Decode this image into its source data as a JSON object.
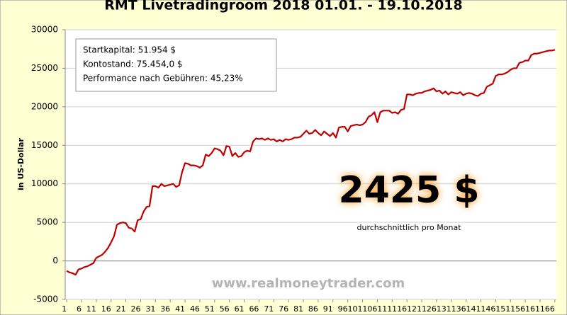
{
  "chart_data": {
    "type": "line",
    "title": "RMT Livetradingroom 2018  01.01. - 19.10.2018",
    "y_label": "in US-Dollar",
    "x": [
      1,
      2,
      3,
      4,
      5,
      6,
      7,
      8,
      9,
      10,
      11,
      12,
      13,
      14,
      15,
      16,
      17,
      18,
      19,
      20,
      21,
      22,
      23,
      24,
      25,
      26,
      27,
      28,
      29,
      30,
      31,
      32,
      33,
      34,
      35,
      36,
      37,
      38,
      39,
      40,
      41,
      42,
      43,
      44,
      45,
      46,
      47,
      48,
      49,
      50,
      51,
      52,
      53,
      54,
      55,
      56,
      57,
      58,
      59,
      60,
      61,
      62,
      63,
      64,
      65,
      66,
      67,
      68,
      69,
      70,
      71,
      72,
      73,
      74,
      75,
      76,
      77,
      78,
      79,
      80,
      81,
      82,
      83,
      84,
      85,
      86,
      87,
      88,
      89,
      90,
      91,
      92,
      93,
      94,
      95,
      96,
      97,
      98,
      99,
      100,
      101,
      102,
      103,
      104,
      105,
      106,
      107,
      108,
      109,
      110,
      111,
      112,
      113,
      114,
      115,
      116,
      117,
      118,
      119,
      120,
      121,
      122,
      123,
      124,
      125,
      126,
      127,
      128,
      129,
      130,
      131,
      132,
      133,
      134,
      135,
      136,
      137,
      138,
      139,
      140,
      141,
      142,
      143,
      144,
      145,
      146,
      147,
      148,
      149,
      150,
      151,
      152,
      153,
      154,
      155,
      156,
      157,
      158,
      159,
      160,
      161,
      162,
      163,
      164,
      165,
      166
    ],
    "values": [
      -1300,
      -1500,
      -1600,
      -1800,
      -1100,
      -1000,
      -800,
      -700,
      -500,
      -300,
      400,
      600,
      800,
      1200,
      1700,
      2400,
      3200,
      4700,
      4900,
      5000,
      4900,
      4300,
      4200,
      3800,
      5300,
      5400,
      6400,
      7000,
      7100,
      9700,
      9700,
      9500,
      10000,
      9700,
      9800,
      9900,
      10000,
      9600,
      9800,
      11500,
      12700,
      12600,
      12400,
      12400,
      12300,
      12100,
      12400,
      13800,
      13600,
      14000,
      14600,
      14500,
      14300,
      13700,
      14900,
      14800,
      13600,
      14000,
      13500,
      13600,
      14100,
      14300,
      14200,
      15500,
      15900,
      15800,
      15900,
      15700,
      15900,
      15700,
      15800,
      15500,
      15700,
      15500,
      15800,
      15700,
      15800,
      16000,
      16000,
      16100,
      16500,
      16900,
      16500,
      16600,
      17000,
      16600,
      16300,
      16800,
      16500,
      16200,
      16600,
      16000,
      17300,
      17400,
      17400,
      16800,
      17500,
      17600,
      17700,
      17600,
      17700,
      18000,
      18700,
      18900,
      19300,
      18000,
      19300,
      19500,
      19500,
      19500,
      19200,
      19300,
      19100,
      19600,
      19700,
      21600,
      21600,
      21500,
      21700,
      21800,
      21800,
      22000,
      22100,
      22200,
      22400,
      22000,
      22100,
      21700,
      22000,
      21600,
      21900,
      21800,
      21700,
      21900,
      21500,
      21700,
      21800,
      21700,
      21500,
      21400,
      21700,
      21800,
      22600,
      22800,
      23000,
      24000,
      24200,
      24200,
      24300,
      24500,
      24800,
      25000,
      25000,
      25700,
      25800,
      26000,
      26000,
      26700,
      26900,
      26900,
      27000,
      27100,
      27200,
      27300,
      27300,
      27400
    ],
    "color": "#c00000",
    "xlim": [
      0.5,
      166.5
    ],
    "xticks": [
      1,
      6,
      11,
      16,
      21,
      26,
      31,
      36,
      41,
      46,
      51,
      56,
      61,
      66,
      71,
      76,
      81,
      86,
      91,
      96,
      101,
      106,
      111,
      116,
      121,
      126,
      131,
      136,
      141,
      146,
      151,
      156,
      161,
      166
    ],
    "ylim": [
      -5000,
      30000
    ],
    "yticks": [
      -5000,
      0,
      5000,
      10000,
      15000,
      20000,
      25000,
      30000
    ],
    "info_box": [
      "Startkapital: 51.954 $",
      "Kontostand: 75.454,0 $",
      "Performance nach Gebühren: 45,23%"
    ],
    "highlight": "2425 $",
    "highlight_caption": "durchschnittlich  pro Monat",
    "watermark": "www.realmoneytrader.com"
  }
}
